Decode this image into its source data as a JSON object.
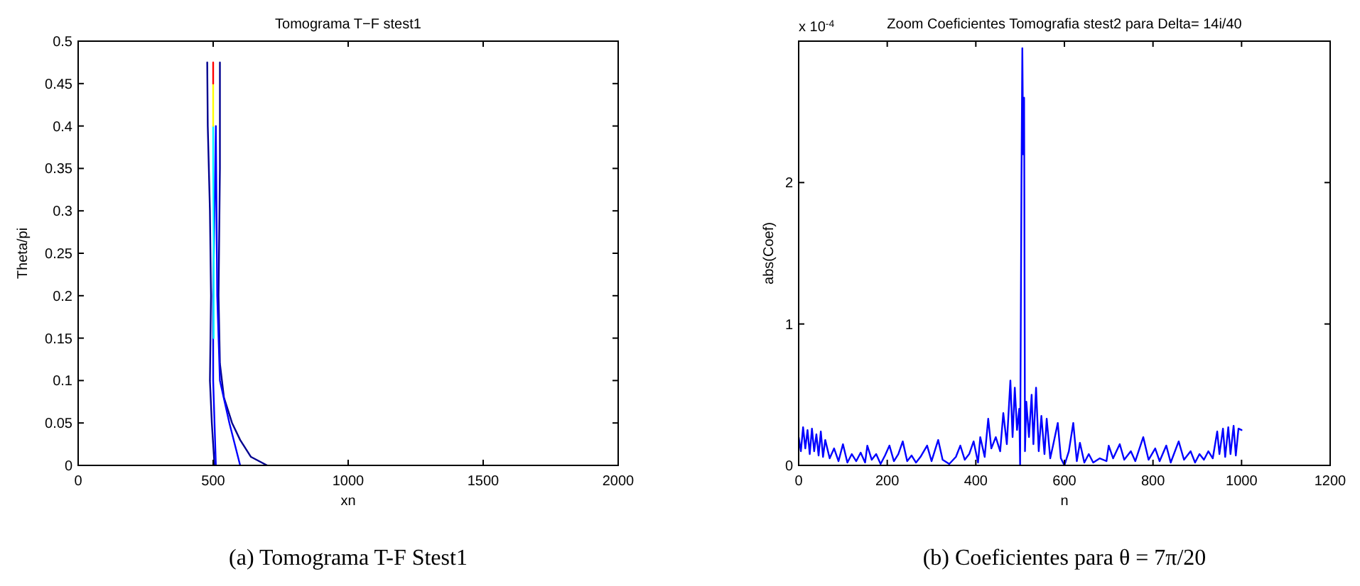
{
  "chart_data": [
    {
      "type": "line",
      "title": "Tomograma T−F stest1",
      "xlabel": "xn",
      "ylabel": "Theta/pi",
      "xlim": [
        0,
        2000
      ],
      "xticks": [
        0,
        500,
        1000,
        1500,
        2000
      ],
      "ylim": [
        0,
        0.5
      ],
      "yticks": [
        0,
        0.05,
        0.1,
        0.15,
        0.2,
        0.25,
        0.3,
        0.35,
        0.4,
        0.45,
        0.5
      ],
      "annotations": [
        "(a) Tomograma T-F Stest1"
      ],
      "series": [
        {
          "color": "#00008f",
          "x": [
            505,
            495,
            488,
            490,
            492,
            488,
            480,
            478
          ],
          "values": [
            0,
            0.05,
            0.1,
            0.15,
            0.2,
            0.3,
            0.4,
            0.475
          ]
        },
        {
          "color": "#00008f",
          "x": [
            700,
            640,
            600,
            570,
            540,
            525,
            520,
            525,
            525
          ],
          "values": [
            0,
            0.01,
            0.03,
            0.05,
            0.08,
            0.12,
            0.2,
            0.35,
            0.475
          ]
        },
        {
          "color": "#0000ff",
          "x": [
            510,
            500,
            500,
            505,
            510,
            515,
            525,
            560,
            600
          ],
          "values": [
            0,
            0.1,
            0.2,
            0.3,
            0.4,
            0.2,
            0.1,
            0.05,
            0
          ]
        },
        {
          "color": "#00ffff",
          "x": [
            502,
            502,
            500,
            500
          ],
          "values": [
            0.15,
            0.25,
            0.35,
            0.4
          ]
        },
        {
          "color": "#ffff00",
          "x": [
            500,
            500
          ],
          "values": [
            0.4,
            0.45
          ]
        },
        {
          "color": "#ff0000",
          "x": [
            500,
            500
          ],
          "values": [
            0.45,
            0.475
          ]
        }
      ]
    },
    {
      "type": "line",
      "title": "Zoom Coeficientes Tomografia stest2  para Delta= 14i/40",
      "xlabel": "n",
      "ylabel": "abs(Coef)",
      "xlim": [
        0,
        1200
      ],
      "xticks": [
        0,
        200,
        400,
        600,
        800,
        1000,
        1200
      ],
      "ylim": [
        0,
        3
      ],
      "yticks": [
        0,
        1,
        2
      ],
      "annotations": [
        "x 10$^{-4}$",
        "(b) Coeficientes para θ = 7π/20"
      ],
      "series": [
        {
          "color": "#0000ff",
          "x": [
            0,
            5,
            10,
            15,
            20,
            25,
            30,
            35,
            40,
            45,
            50,
            55,
            60,
            70,
            80,
            90,
            100,
            110,
            120,
            130,
            140,
            150,
            155,
            165,
            175,
            185,
            195,
            205,
            215,
            225,
            235,
            245,
            255,
            265,
            275,
            290,
            300,
            315,
            325,
            340,
            355,
            365,
            375,
            385,
            395,
            405,
            410,
            420,
            428,
            435,
            445,
            455,
            462,
            470,
            478,
            483,
            488,
            493,
            498,
            500,
            503,
            505,
            507,
            509,
            511,
            514,
            520,
            526,
            530,
            536,
            542,
            548,
            555,
            560,
            568,
            575,
            585,
            592,
            600,
            610,
            620,
            628,
            635,
            645,
            655,
            665,
            680,
            695,
            700,
            710,
            725,
            735,
            750,
            760,
            778,
            790,
            805,
            815,
            830,
            840,
            858,
            870,
            885,
            895,
            905,
            915,
            925,
            935,
            945,
            950,
            958,
            963,
            970,
            975,
            982,
            987,
            993,
            1000
          ],
          "values": [
            0.2,
            0.1,
            0.27,
            0.12,
            0.25,
            0.08,
            0.26,
            0.1,
            0.22,
            0.07,
            0.24,
            0.06,
            0.18,
            0.05,
            0.12,
            0.03,
            0.15,
            0.02,
            0.08,
            0.03,
            0.09,
            0.02,
            0.14,
            0.04,
            0.08,
            0.01,
            0.07,
            0.14,
            0.03,
            0.08,
            0.17,
            0.03,
            0.07,
            0.02,
            0.06,
            0.14,
            0.03,
            0.18,
            0.04,
            0.01,
            0.06,
            0.14,
            0.04,
            0.08,
            0.17,
            0.02,
            0.2,
            0.06,
            0.33,
            0.12,
            0.2,
            0.1,
            0.37,
            0.15,
            0.6,
            0.2,
            0.55,
            0.25,
            0.4,
            0,
            2,
            2.95,
            2.2,
            2.6,
            0.1,
            0.45,
            0.2,
            0.5,
            0.15,
            0.55,
            0.1,
            0.35,
            0.08,
            0.33,
            0.05,
            0.15,
            0.3,
            0.05,
            0,
            0.1,
            0.3,
            0.03,
            0.16,
            0.02,
            0.08,
            0.02,
            0.05,
            0.03,
            0.14,
            0.05,
            0.15,
            0.04,
            0.1,
            0.03,
            0.2,
            0.04,
            0.12,
            0.03,
            0.14,
            0.02,
            0.17,
            0.04,
            0.1,
            0.02,
            0.08,
            0.04,
            0.1,
            0.05,
            0.24,
            0.08,
            0.26,
            0.06,
            0.27,
            0.08,
            0.28,
            0.07,
            0.26,
            0.25
          ]
        }
      ]
    }
  ]
}
